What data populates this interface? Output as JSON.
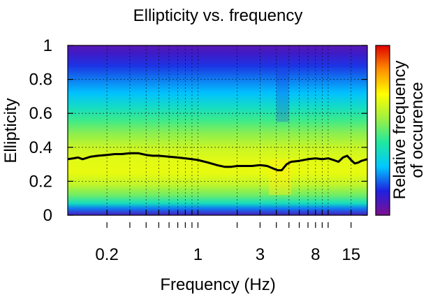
{
  "chart_data": {
    "type": "heatmap",
    "title": "Ellipticity vs. frequency",
    "xlabel": "Frequency (Hz)",
    "ylabel": "Ellipticity",
    "colorbar_label": [
      "Relative frequency",
      "of occurence"
    ],
    "x_scale": "log",
    "xlim": [
      0.1,
      20
    ],
    "ylim": [
      0,
      1
    ],
    "x_ticks": [
      0.2,
      1,
      3,
      8,
      15
    ],
    "x_tick_labels": [
      "0.2",
      "1",
      "3",
      "8",
      "15"
    ],
    "x_minor_ticks": [
      0.2,
      0.3,
      0.4,
      0.5,
      0.6,
      0.7,
      0.8,
      0.9,
      1,
      2,
      3,
      4,
      5,
      6,
      7,
      8,
      9,
      10,
      15
    ],
    "y_ticks": [
      0,
      0.2,
      0.4,
      0.6,
      0.8,
      1
    ],
    "y_tick_labels": [
      "0",
      "0.2",
      "0.4",
      "0.6",
      "0.8",
      "1"
    ],
    "grid": true,
    "colormap": [
      "#7f0f8f",
      "#2020e0",
      "#00c8ff",
      "#20e8a0",
      "#a0f040",
      "#ffff00",
      "#ff9000",
      "#e00000"
    ],
    "heatmap_profile": {
      "y": [
        0,
        0.04,
        0.07,
        0.12,
        0.18,
        0.25,
        0.32,
        0.4,
        0.48,
        0.56,
        0.64,
        0.72,
        0.8,
        0.88,
        0.95,
        1.0
      ],
      "relative_frequency": [
        0.08,
        0.22,
        0.38,
        0.52,
        0.62,
        0.68,
        0.67,
        0.63,
        0.55,
        0.46,
        0.37,
        0.28,
        0.22,
        0.16,
        0.1,
        0.06
      ]
    },
    "series": [
      {
        "type": "line",
        "color": "#000000",
        "x": [
          0.1,
          0.11,
          0.12,
          0.13,
          0.15,
          0.17,
          0.2,
          0.23,
          0.26,
          0.3,
          0.35,
          0.4,
          0.45,
          0.5,
          0.6,
          0.7,
          0.8,
          0.9,
          1.0,
          1.2,
          1.4,
          1.6,
          1.8,
          2.0,
          2.3,
          2.6,
          3.0,
          3.4,
          3.8,
          4.1,
          4.4,
          4.8,
          5.2,
          6.0,
          7.0,
          8.0,
          9.0,
          10.0,
          11.0,
          12.0,
          13.0,
          14.0,
          15.0,
          16.0,
          17.0,
          18.0,
          20.0
        ],
        "y": [
          0.33,
          0.335,
          0.34,
          0.33,
          0.345,
          0.35,
          0.355,
          0.36,
          0.36,
          0.365,
          0.365,
          0.355,
          0.35,
          0.35,
          0.345,
          0.34,
          0.335,
          0.33,
          0.325,
          0.31,
          0.295,
          0.285,
          0.285,
          0.29,
          0.29,
          0.29,
          0.295,
          0.29,
          0.275,
          0.265,
          0.265,
          0.3,
          0.315,
          0.32,
          0.33,
          0.335,
          0.33,
          0.335,
          0.325,
          0.315,
          0.34,
          0.35,
          0.325,
          0.305,
          0.31,
          0.32,
          0.33
        ]
      }
    ]
  }
}
